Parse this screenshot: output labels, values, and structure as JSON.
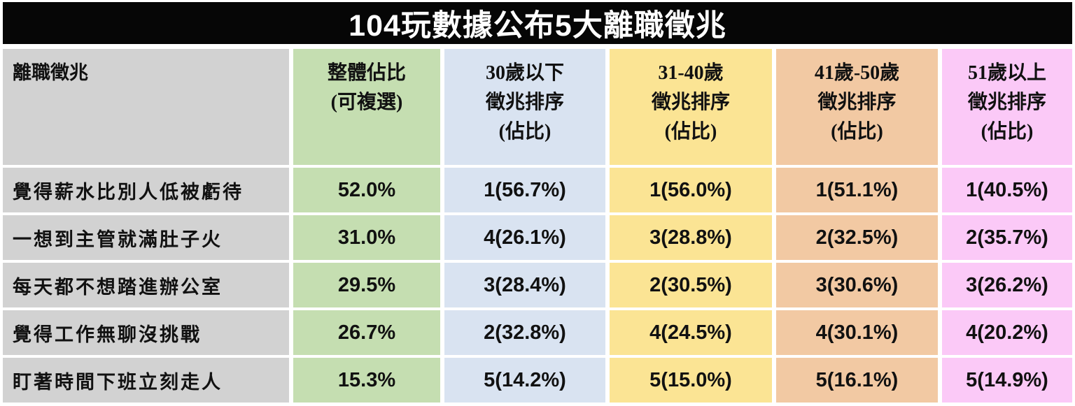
{
  "title": "104玩數據公布5大離職徵兆",
  "table": {
    "label_header": "離職徵兆",
    "columns": [
      {
        "name": "overall",
        "lines": [
          "整體佔比",
          "(可複選)"
        ],
        "color": "#c5deb1"
      },
      {
        "name": "under-30",
        "lines": [
          "30歲以下",
          "徵兆排序",
          "(佔比)"
        ],
        "color": "#d9e3f1"
      },
      {
        "name": "31-40",
        "lines": [
          "31-40歲",
          "徵兆排序",
          "(佔比)"
        ],
        "color": "#fbe494"
      },
      {
        "name": "41-50",
        "lines": [
          "41歲-50歲",
          "徵兆排序",
          "(佔比)"
        ],
        "color": "#f2c9a3"
      },
      {
        "name": "51-up",
        "lines": [
          "51歲以上",
          "徵兆排序",
          "(佔比)"
        ],
        "color": "#fbc9f7"
      }
    ],
    "rows": [
      {
        "label": "覺得薪水比別人低被虧待",
        "values": [
          "52.0%",
          "1(56.7%)",
          "1(56.0%)",
          "1(51.1%)",
          "1(40.5%)"
        ]
      },
      {
        "label": "一想到主管就滿肚子火",
        "values": [
          "31.0%",
          "4(26.1%)",
          "3(28.8%)",
          "2(32.5%)",
          "2(35.7%)"
        ]
      },
      {
        "label": "每天都不想踏進辦公室",
        "values": [
          "29.5%",
          "3(28.4%)",
          "2(30.5%)",
          "3(30.6%)",
          "3(26.2%)"
        ]
      },
      {
        "label": "覺得工作無聊沒挑戰",
        "values": [
          "26.7%",
          "2(32.8%)",
          "4(24.5%)",
          "4(30.1%)",
          "4(20.2%)"
        ]
      },
      {
        "label": "盯著時間下班立刻走人",
        "values": [
          "15.3%",
          "5(14.2%)",
          "5(15.0%)",
          "5(16.1%)",
          "5(14.9%)"
        ]
      }
    ]
  },
  "colors": {
    "title_bg": "#060606",
    "title_text": "#ffffff",
    "label_column_bg": "#d2d2d2",
    "overall_bg": "#c5deb1",
    "under30_bg": "#d9e3f1",
    "age3140_bg": "#fbe494",
    "age4150_bg": "#f2c9a3",
    "age51up_bg": "#fbc9f7",
    "cell_text": "#111111"
  },
  "chart_data": {
    "type": "table",
    "title": "104玩數據公布5大離職徵兆",
    "columns": [
      "離職徵兆",
      "整體佔比(可複選)",
      "30歲以下徵兆排序(佔比)",
      "31-40歲徵兆排序(佔比)",
      "41歲-50歲徵兆排序(佔比)",
      "51歲以上徵兆排序(佔比)"
    ],
    "records": [
      {
        "sign": "覺得薪水比別人低被虧待",
        "overall_pct": 52.0,
        "under_30": {
          "rank": 1,
          "pct": 56.7
        },
        "age_31_40": {
          "rank": 1,
          "pct": 56.0
        },
        "age_41_50": {
          "rank": 1,
          "pct": 51.1
        },
        "age_51_up": {
          "rank": 1,
          "pct": 40.5
        }
      },
      {
        "sign": "一想到主管就滿肚子火",
        "overall_pct": 31.0,
        "under_30": {
          "rank": 4,
          "pct": 26.1
        },
        "age_31_40": {
          "rank": 3,
          "pct": 28.8
        },
        "age_41_50": {
          "rank": 2,
          "pct": 32.5
        },
        "age_51_up": {
          "rank": 2,
          "pct": 35.7
        }
      },
      {
        "sign": "每天都不想踏進辦公室",
        "overall_pct": 29.5,
        "under_30": {
          "rank": 3,
          "pct": 28.4
        },
        "age_31_40": {
          "rank": 2,
          "pct": 30.5
        },
        "age_41_50": {
          "rank": 3,
          "pct": 30.6
        },
        "age_51_up": {
          "rank": 3,
          "pct": 26.2
        }
      },
      {
        "sign": "覺得工作無聊沒挑戰",
        "overall_pct": 26.7,
        "under_30": {
          "rank": 2,
          "pct": 32.8
        },
        "age_31_40": {
          "rank": 4,
          "pct": 24.5
        },
        "age_41_50": {
          "rank": 4,
          "pct": 30.1
        },
        "age_51_up": {
          "rank": 4,
          "pct": 20.2
        }
      },
      {
        "sign": "盯著時間下班立刻走人",
        "overall_pct": 15.3,
        "under_30": {
          "rank": 5,
          "pct": 14.2
        },
        "age_31_40": {
          "rank": 5,
          "pct": 15.0
        },
        "age_41_50": {
          "rank": 5,
          "pct": 16.1
        },
        "age_51_up": {
          "rank": 5,
          "pct": 14.9
        }
      }
    ]
  }
}
